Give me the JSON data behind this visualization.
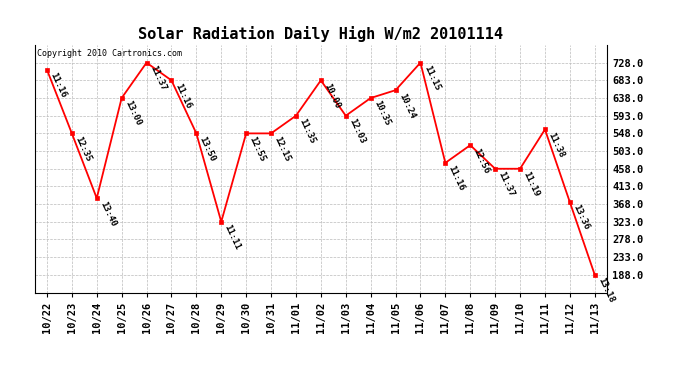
{
  "title": "Solar Radiation Daily High W/m2 20101114",
  "copyright": "Copyright 2010 Cartronics.com",
  "dates": [
    "10/22",
    "10/23",
    "10/24",
    "10/25",
    "10/26",
    "10/27",
    "10/28",
    "10/29",
    "10/30",
    "10/31",
    "11/01",
    "11/02",
    "11/03",
    "11/04",
    "11/05",
    "11/06",
    "11/07",
    "11/08",
    "11/09",
    "11/10",
    "11/11",
    "11/12",
    "11/13"
  ],
  "values": [
    710,
    548,
    383,
    638,
    728,
    683,
    548,
    323,
    548,
    548,
    593,
    683,
    593,
    638,
    658,
    728,
    473,
    518,
    458,
    458,
    558,
    373,
    188
  ],
  "times": [
    "11:16",
    "12:35",
    "13:40",
    "13:00",
    "11:37",
    "11:16",
    "13:50",
    "11:11",
    "12:55",
    "12:15",
    "11:35",
    "10:00",
    "12:03",
    "10:35",
    "10:24",
    "11:15",
    "11:16",
    "12:56",
    "11:37",
    "11:19",
    "11:38",
    "13:36",
    "13:18"
  ],
  "yticks": [
    188.0,
    233.0,
    278.0,
    323.0,
    368.0,
    413.0,
    458.0,
    503.0,
    548.0,
    593.0,
    638.0,
    683.0,
    728.0
  ],
  "ymin": 143,
  "ymax": 773,
  "line_color": "#ff0000",
  "marker_color": "#ff0000",
  "bg_color": "#ffffff",
  "grid_color": "#bbbbbb",
  "title_fontsize": 11,
  "tick_fontsize": 7.5,
  "ann_fontsize": 6.5
}
